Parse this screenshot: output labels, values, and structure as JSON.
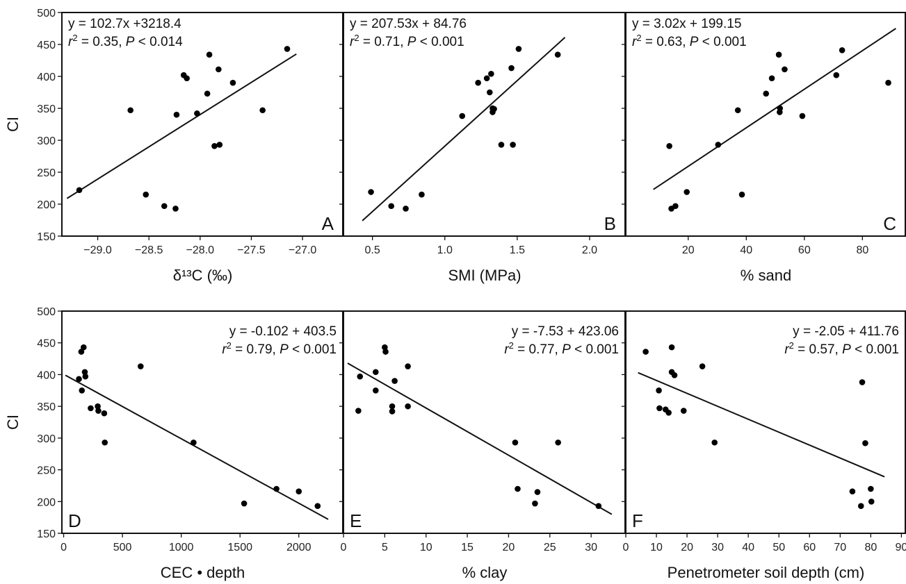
{
  "chart_data": [
    {
      "panel_label": "A",
      "type": "scatter",
      "xlabel": "δ¹³C (‰)",
      "ylabel": "CI",
      "xlim": [
        -29.35,
        -26.6
      ],
      "ylim": [
        150,
        500
      ],
      "xticks": [
        -29.0,
        -28.5,
        -28.0,
        -27.5,
        -27.0
      ],
      "xtick_labels": [
        "−29.0",
        "−28.5",
        "−28.0",
        "−27.5",
        "−27.0"
      ],
      "yticks": [
        150,
        200,
        250,
        300,
        350,
        400,
        450,
        500
      ],
      "ytick_labels": [
        "150",
        "200",
        "250",
        "300",
        "350",
        "400",
        "450",
        "500"
      ],
      "equation": "y = 102.7x +3218.4",
      "r2_text": "r² = 0.35, P < 0.014",
      "points": [
        [
          -29.18,
          222
        ],
        [
          -28.68,
          347
        ],
        [
          -28.53,
          215
        ],
        [
          -28.35,
          197
        ],
        [
          -28.24,
          193
        ],
        [
          -28.23,
          340
        ],
        [
          -28.16,
          402
        ],
        [
          -28.13,
          397
        ],
        [
          -28.03,
          342
        ],
        [
          -27.93,
          373
        ],
        [
          -27.91,
          434
        ],
        [
          -27.86,
          291
        ],
        [
          -27.81,
          293
        ],
        [
          -27.82,
          411
        ],
        [
          -27.68,
          390
        ],
        [
          -27.39,
          347
        ],
        [
          -27.15,
          443
        ]
      ],
      "fit_line": [
        [
          -29.3,
          209
        ],
        [
          -27.06,
          435
        ]
      ]
    },
    {
      "panel_label": "B",
      "type": "scatter",
      "xlabel": "SMI (MPa)",
      "ylabel": "",
      "xlim": [
        0.3,
        2.25
      ],
      "ylim": [
        150,
        500
      ],
      "xticks": [
        0.5,
        1.0,
        1.5,
        2.0
      ],
      "xtick_labels": [
        "0.5",
        "1.0",
        "1.5",
        "2.0"
      ],
      "yticks": [
        150,
        200,
        250,
        300,
        350,
        400,
        450,
        500
      ],
      "ytick_labels": [],
      "equation": "y = 207.53x + 84.76",
      "r2_text": "r² = 0.71, P < 0.001",
      "points": [
        [
          0.49,
          219
        ],
        [
          0.63,
          197
        ],
        [
          0.73,
          193
        ],
        [
          0.84,
          215
        ],
        [
          1.12,
          338
        ],
        [
          1.23,
          390
        ],
        [
          1.29,
          397
        ],
        [
          1.31,
          375
        ],
        [
          1.32,
          404
        ],
        [
          1.33,
          344
        ],
        [
          1.33,
          350
        ],
        [
          1.34,
          349
        ],
        [
          1.39,
          293
        ],
        [
          1.46,
          413
        ],
        [
          1.47,
          293
        ],
        [
          1.51,
          443
        ],
        [
          1.78,
          434
        ]
      ],
      "fit_line": [
        [
          0.43,
          174
        ],
        [
          1.83,
          461
        ]
      ]
    },
    {
      "panel_label": "C",
      "type": "scatter",
      "xlabel": "% sand",
      "ylabel": "",
      "xlim": [
        -1.5,
        95
      ],
      "ylim": [
        150,
        500
      ],
      "xticks": [
        20,
        40,
        60,
        80
      ],
      "xtick_labels": [
        "20",
        "40",
        "60",
        "80"
      ],
      "yticks": [
        150,
        200,
        250,
        300,
        350,
        400,
        450,
        500
      ],
      "ytick_labels": [],
      "equation": "y = 3.02x + 199.15",
      "r2_text": "r² = 0.63, P < 0.001",
      "points": [
        [
          13.5,
          291
        ],
        [
          14.2,
          193
        ],
        [
          15.6,
          197
        ],
        [
          19.5,
          219
        ],
        [
          30.3,
          293
        ],
        [
          37.1,
          347
        ],
        [
          38.5,
          215
        ],
        [
          46.8,
          373
        ],
        [
          48.8,
          397
        ],
        [
          51.2,
          434
        ],
        [
          51.6,
          350
        ],
        [
          51.5,
          344
        ],
        [
          53.2,
          411
        ],
        [
          59.3,
          338
        ],
        [
          71.0,
          402
        ],
        [
          73.0,
          441
        ],
        [
          88.9,
          390
        ]
      ],
      "fit_line": [
        [
          8.0,
          223
        ],
        [
          91.5,
          475
        ]
      ]
    },
    {
      "panel_label": "D",
      "type": "scatter",
      "xlabel": "CEC • depth",
      "ylabel": "CI",
      "xlim": [
        -15,
        2380
      ],
      "ylim": [
        150,
        500
      ],
      "xticks": [
        0,
        500,
        1000,
        1500,
        2000
      ],
      "xtick_labels": [
        "0",
        "500",
        "1000",
        "1500",
        "2000"
      ],
      "yticks": [
        150,
        200,
        250,
        300,
        350,
        400,
        450,
        500
      ],
      "ytick_labels": [
        "150",
        "200",
        "250",
        "300",
        "350",
        "400",
        "450",
        "500"
      ],
      "equation": "y = -0.102 + 403.5",
      "r2_text": "r² = 0.79, P < 0.001",
      "points": [
        [
          130,
          393
        ],
        [
          150,
          436
        ],
        [
          155,
          375
        ],
        [
          170,
          443
        ],
        [
          180,
          404
        ],
        [
          185,
          397
        ],
        [
          230,
          347
        ],
        [
          290,
          350
        ],
        [
          295,
          343
        ],
        [
          345,
          339
        ],
        [
          350,
          293
        ],
        [
          655,
          413
        ],
        [
          1105,
          293
        ],
        [
          1535,
          197
        ],
        [
          1810,
          220
        ],
        [
          2000,
          216
        ],
        [
          2160,
          193
        ]
      ],
      "fit_line": [
        [
          15,
          399
        ],
        [
          2250,
          172
        ]
      ]
    },
    {
      "panel_label": "E",
      "type": "scatter",
      "xlabel": "% clay",
      "ylabel": "",
      "xlim": [
        0,
        34.2
      ],
      "ylim": [
        150,
        500
      ],
      "xticks": [
        0,
        5,
        10,
        15,
        20,
        25,
        30
      ],
      "xtick_labels": [
        "0",
        "5",
        "10",
        "15",
        "20",
        "25",
        "30"
      ],
      "yticks": [
        150,
        200,
        250,
        300,
        350,
        400,
        450,
        500
      ],
      "ytick_labels": [],
      "equation": "y = -7.53 + 423.06",
      "r2_text": "r² = 0.77, P < 0.001",
      "points": [
        [
          1.8,
          343
        ],
        [
          2.0,
          397
        ],
        [
          3.9,
          404
        ],
        [
          3.9,
          375
        ],
        [
          5.0,
          443
        ],
        [
          5.1,
          436
        ],
        [
          5.9,
          350
        ],
        [
          5.9,
          342
        ],
        [
          6.2,
          390
        ],
        [
          7.8,
          413
        ],
        [
          7.8,
          350
        ],
        [
          20.8,
          293
        ],
        [
          21.1,
          220
        ],
        [
          23.2,
          197
        ],
        [
          23.5,
          215
        ],
        [
          26.0,
          293
        ],
        [
          30.9,
          193
        ]
      ],
      "fit_line": [
        [
          0.5,
          418
        ],
        [
          32.5,
          180
        ]
      ]
    },
    {
      "panel_label": "F",
      "type": "scatter",
      "xlabel": "Penetrometer soil depth (cm)",
      "ylabel": "",
      "xlim": [
        0,
        91.5
      ],
      "ylim": [
        150,
        500
      ],
      "xticks": [
        0,
        10,
        20,
        30,
        40,
        50,
        60,
        70,
        80,
        90
      ],
      "xtick_labels": [
        "0",
        "10",
        "20",
        "30",
        "40",
        "50",
        "60",
        "70",
        "80",
        "90"
      ],
      "yticks": [
        150,
        200,
        250,
        300,
        350,
        400,
        450,
        500
      ],
      "ytick_labels": [],
      "equation": "y = -2.05 + 411.76",
      "r2_text": "r² = 0.57, P < 0.001",
      "points": [
        [
          6.5,
          436
        ],
        [
          10.8,
          375
        ],
        [
          11.0,
          347
        ],
        [
          13.0,
          345
        ],
        [
          14.0,
          340
        ],
        [
          15.0,
          443
        ],
        [
          15.0,
          404
        ],
        [
          15.9,
          399
        ],
        [
          18.9,
          343
        ],
        [
          25.0,
          413
        ],
        [
          29.0,
          293
        ],
        [
          74.0,
          216
        ],
        [
          76.8,
          193
        ],
        [
          77.2,
          388
        ],
        [
          78.2,
          292
        ],
        [
          80.0,
          220
        ],
        [
          80.2,
          200
        ]
      ],
      "fit_line": [
        [
          4.0,
          403
        ],
        [
          84.5,
          239
        ]
      ]
    }
  ]
}
